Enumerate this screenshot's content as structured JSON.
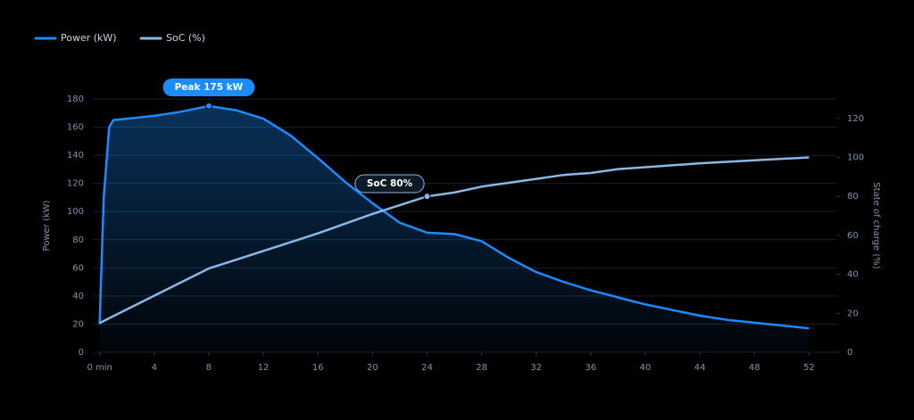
{
  "chart_data": {
    "type": "line",
    "x_label": "",
    "y_label": "Power (kW)",
    "y2_label": "State of charge (%)",
    "series": [
      {
        "name": "Power (kW)",
        "color": "#1a8cff",
        "axis": "y",
        "x": [
          0,
          0.3,
          0.7,
          1,
          2,
          4,
          6,
          8,
          10,
          12,
          14,
          16,
          18,
          20,
          22,
          24,
          26,
          28,
          30,
          32,
          34,
          36,
          38,
          40,
          42,
          44,
          46,
          48,
          50,
          52
        ],
        "values": [
          20,
          110,
          160,
          165,
          166,
          168,
          171,
          175,
          172,
          166,
          154,
          138,
          121,
          106,
          92,
          85,
          84,
          79,
          67,
          57,
          50,
          44,
          39,
          34,
          30,
          26,
          23,
          21,
          19,
          17
        ]
      },
      {
        "name": "SoC (%)",
        "color": "#8ab8e6",
        "axis": "y2",
        "x": [
          0,
          4,
          8,
          12,
          16,
          20,
          24,
          26,
          28,
          32,
          34,
          36,
          38,
          40,
          44,
          48,
          52
        ],
        "values": [
          15,
          29,
          43,
          52,
          61,
          71,
          80,
          82,
          85,
          89,
          91,
          92,
          94,
          95,
          97,
          98.5,
          100
        ]
      }
    ],
    "annotations": [
      {
        "text": "Peak 175 kW",
        "x": 8,
        "y": 175,
        "axis": "y"
      },
      {
        "text": "SoC 80%",
        "x": 24,
        "y": 80,
        "axis": "y2"
      }
    ],
    "xlim": [
      -0.5,
      54
    ],
    "xticks": [
      {
        "value": 0,
        "label": "0 min"
      },
      4,
      8,
      12,
      16,
      20,
      24,
      28,
      32,
      36,
      40,
      44,
      48,
      52
    ],
    "ylim": [
      0,
      180
    ],
    "yticks": [
      0,
      20,
      40,
      60,
      80,
      100,
      120,
      140,
      160,
      180
    ],
    "y2lim": [
      0,
      130
    ],
    "y2ticks": [
      0,
      20,
      40,
      60,
      80,
      100,
      120
    ],
    "grid": true,
    "legend": "top-left"
  }
}
